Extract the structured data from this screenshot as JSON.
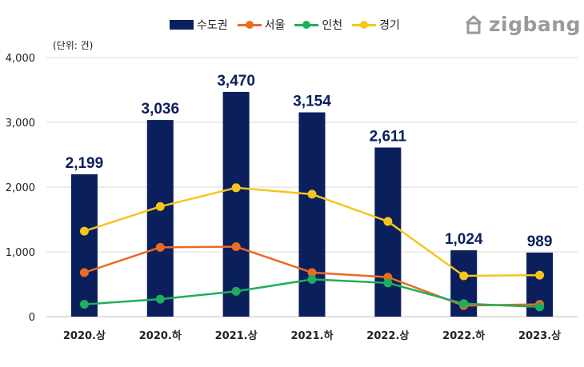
{
  "unit_label": "(단위: 건)",
  "brand": {
    "text": "zigbang",
    "logo_icon": "zigbang-house-logo-icon",
    "color": "#9a9a9a"
  },
  "chart_data": {
    "type": "bar",
    "categories": [
      "2020.상",
      "2020.하",
      "2021.상",
      "2021.하",
      "2022.상",
      "2022.하",
      "2023.상"
    ],
    "ylim": [
      0,
      4000
    ],
    "yticks": [
      0,
      1000,
      2000,
      3000,
      4000
    ],
    "ytick_labels": [
      "0",
      "1,000",
      "2,000",
      "3,000",
      "4,000"
    ],
    "grid": true,
    "legend_position": "top-center",
    "series": [
      {
        "name": "수도권",
        "type": "bar",
        "color": "#0a1f5c",
        "values": [
          2199,
          3036,
          3470,
          3154,
          2611,
          1024,
          989
        ],
        "labels": [
          "2,199",
          "3,036",
          "3,470",
          "3,154",
          "2,611",
          "1,024",
          "989"
        ]
      },
      {
        "name": "서울",
        "type": "line",
        "color": "#ec6a22",
        "values": [
          680,
          1070,
          1080,
          680,
          610,
          170,
          190
        ]
      },
      {
        "name": "인천",
        "type": "line",
        "color": "#1fae5c",
        "values": [
          190,
          270,
          390,
          575,
          520,
          200,
          150
        ]
      },
      {
        "name": "경기",
        "type": "line",
        "color": "#f5c51b",
        "values": [
          1320,
          1700,
          1990,
          1890,
          1470,
          630,
          640
        ]
      }
    ]
  }
}
